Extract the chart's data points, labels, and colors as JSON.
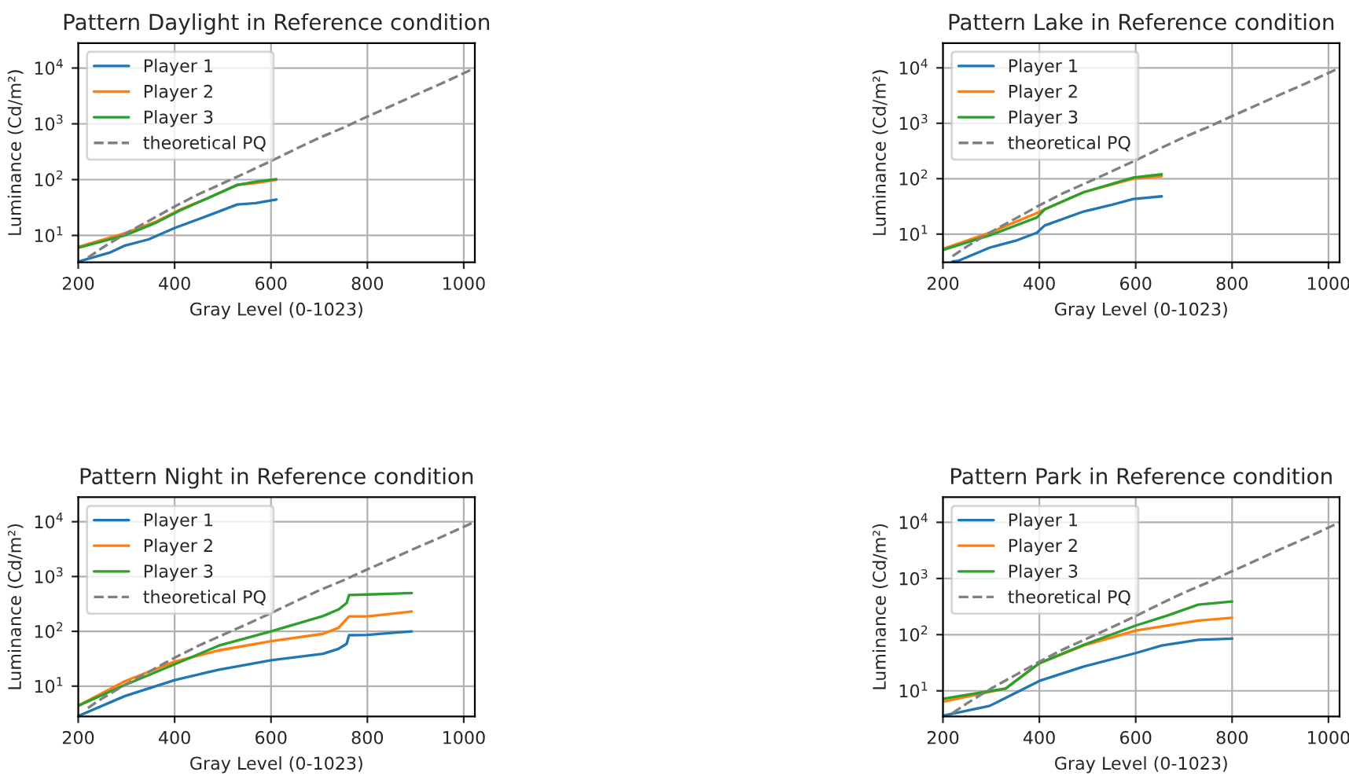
{
  "chart_data": [
    {
      "type": "line",
      "title": "Pattern Daylight in Reference condition",
      "xlabel": "Gray Level (0-1023)",
      "ylabel": "Luminance (Cd/m²)",
      "log": "y",
      "grid": true,
      "legend": "top left",
      "xlim": [
        200,
        1023
      ],
      "xticks": [
        200,
        400,
        600,
        800,
        1000
      ],
      "ylim": [
        3.3,
        28000
      ],
      "yticks": [
        {
          "value": 10,
          "label": "10$^{1}$"
        },
        {
          "value": 100,
          "label": "10$^{2}$"
        },
        {
          "value": 1000,
          "label": "10$^{3}$"
        },
        {
          "value": 10000,
          "label": "10$^{4}$"
        }
      ],
      "series": [
        {
          "name": "Player 1",
          "color": "#1f77b4",
          "x": [
            200,
            265,
            297,
            346,
            400,
            470,
            530,
            568,
            611
          ],
          "values": [
            3.4,
            4.9,
            6.6,
            8.5,
            13.6,
            22.8,
            35.8,
            38,
            44
          ]
        },
        {
          "name": "Player 2",
          "color": "#ff7f0e",
          "x": [
            200,
            297,
            362,
            411,
            470,
            530,
            568,
            611
          ],
          "values": [
            6.2,
            11,
            17.8,
            29,
            47,
            81,
            87,
            100
          ]
        },
        {
          "name": "Player 3",
          "color": "#2ca02c",
          "x": [
            200,
            297,
            362,
            411,
            470,
            530,
            568,
            611
          ],
          "values": [
            6.0,
            10,
            17,
            28,
            47,
            80,
            92,
            102
          ]
        },
        {
          "name": "theoretical PQ",
          "color": "#808080",
          "line_style": "dashed",
          "x": [
            220,
            250,
            300,
            350,
            400,
            450,
            500,
            550,
            600,
            650,
            700,
            750,
            800,
            850,
            900,
            950,
            1023
          ],
          "values": [
            4,
            6,
            11,
            19,
            33,
            55,
            86,
            135,
            215,
            350,
            560,
            850,
            1350,
            2100,
            3300,
            5100,
            10000
          ]
        }
      ]
    },
    {
      "type": "line",
      "title": "Pattern Lake in Reference condition",
      "xlabel": "Gray Level (0-1023)",
      "ylabel": "Luminance (Cd/m²)",
      "log": "y",
      "grid": true,
      "legend": "top left",
      "xlim": [
        200,
        1023
      ],
      "xticks": [
        200,
        400,
        600,
        800,
        1000
      ],
      "ylim": [
        3.1,
        28000
      ],
      "yticks": [
        {
          "value": 10,
          "label": "10$^{1}$"
        },
        {
          "value": 100,
          "label": "10$^{2}$"
        },
        {
          "value": 1000,
          "label": "10$^{3}$"
        },
        {
          "value": 10000,
          "label": "10$^{4}$"
        }
      ],
      "series": [
        {
          "name": "Player 1",
          "color": "#1f77b4",
          "x": [
            220,
            232,
            297,
            351,
            395,
            411,
            492,
            546,
            595,
            654
          ],
          "values": [
            3.2,
            3.3,
            5.7,
            7.6,
            10.6,
            14.3,
            25.6,
            33,
            43,
            48
          ]
        },
        {
          "name": "Player 2",
          "color": "#ff7f0e",
          "x": [
            200,
            297,
            395,
            411,
            492,
            595,
            654
          ],
          "values": [
            5.4,
            10.6,
            24,
            28,
            57,
            100,
            111
          ]
        },
        {
          "name": "Player 3",
          "color": "#2ca02c",
          "x": [
            200,
            297,
            395,
            411,
            492,
            595,
            654
          ],
          "values": [
            5.2,
            9.5,
            20,
            28,
            57,
            105,
            120
          ]
        },
        {
          "name": "theoretical PQ",
          "color": "#808080",
          "line_style": "dashed",
          "x": [
            220,
            250,
            300,
            350,
            400,
            450,
            500,
            550,
            600,
            650,
            700,
            750,
            800,
            850,
            900,
            950,
            1023
          ],
          "values": [
            4,
            6,
            11,
            19,
            33,
            55,
            86,
            135,
            215,
            350,
            560,
            850,
            1350,
            2100,
            3300,
            5100,
            10000
          ]
        }
      ]
    },
    {
      "type": "line",
      "title": "Pattern Night in Reference condition",
      "xlabel": "Gray Level (0-1023)",
      "ylabel": "Luminance (Cd/m²)",
      "log": "y",
      "grid": true,
      "legend": "top left",
      "xlim": [
        200,
        1023
      ],
      "xticks": [
        200,
        400,
        600,
        800,
        1000
      ],
      "ylim": [
        2.8,
        28000
      ],
      "yticks": [
        {
          "value": 10,
          "label": "10$^{1}$"
        },
        {
          "value": 100,
          "label": "10$^{2}$"
        },
        {
          "value": 1000,
          "label": "10$^{3}$"
        },
        {
          "value": 10000,
          "label": "10$^{4}$"
        }
      ],
      "series": [
        {
          "name": "Player 1",
          "color": "#1f77b4",
          "x": [
            200,
            297,
            400,
            492,
            600,
            708,
            740,
            757,
            762,
            800,
            892
          ],
          "values": [
            2.85,
            6.6,
            12.9,
            20,
            29.7,
            39,
            48,
            59,
            85,
            86,
            100
          ]
        },
        {
          "name": "Player 2",
          "color": "#ff7f0e",
          "x": [
            200,
            297,
            400,
            492,
            600,
            708,
            740,
            757,
            762,
            800,
            892
          ],
          "values": [
            4.4,
            12.3,
            28,
            45,
            66,
            90,
            116,
            168,
            187,
            187,
            230
          ]
        },
        {
          "name": "Player 3",
          "color": "#2ca02c",
          "x": [
            200,
            297,
            400,
            492,
            600,
            708,
            740,
            757,
            762,
            800,
            892
          ],
          "values": [
            4.4,
            10.5,
            25,
            55,
            100,
            190,
            250,
            330,
            460,
            470,
            500
          ]
        },
        {
          "name": "theoretical PQ",
          "color": "#808080",
          "line_style": "dashed",
          "x": [
            220,
            250,
            300,
            350,
            400,
            450,
            500,
            550,
            600,
            650,
            700,
            750,
            800,
            850,
            900,
            950,
            1023
          ],
          "values": [
            4,
            6,
            11,
            19,
            33,
            55,
            86,
            135,
            215,
            350,
            560,
            850,
            1350,
            2100,
            3300,
            5100,
            10000
          ]
        }
      ]
    },
    {
      "type": "line",
      "title": "Pattern Park in Reference condition",
      "xlabel": "Gray Level (0-1023)",
      "ylabel": "Luminance (Cd/m²)",
      "log": "y",
      "grid": true,
      "legend": "top left",
      "xlim": [
        200,
        1023
      ],
      "xticks": [
        200,
        400,
        600,
        800,
        1000
      ],
      "ylim": [
        3.5,
        28000
      ],
      "yticks": [
        {
          "value": 10,
          "label": "10$^{1}$"
        },
        {
          "value": 100,
          "label": "10$^{2}$"
        },
        {
          "value": 1000,
          "label": "10$^{3}$"
        },
        {
          "value": 10000,
          "label": "10$^{4}$"
        }
      ],
      "series": [
        {
          "name": "Player 1",
          "color": "#1f77b4",
          "x": [
            200,
            297,
            400,
            492,
            600,
            654,
            730,
            800
          ],
          "values": [
            3.6,
            5.4,
            15,
            27,
            47,
            64,
            81,
            85
          ]
        },
        {
          "name": "Player 2",
          "color": "#ff7f0e",
          "x": [
            200,
            330,
            400,
            492,
            600,
            730,
            800
          ],
          "values": [
            6.4,
            11,
            31,
            64,
            118,
            178,
            200
          ]
        },
        {
          "name": "Player 3",
          "color": "#2ca02c",
          "x": [
            200,
            330,
            400,
            492,
            600,
            665,
            730,
            800
          ],
          "values": [
            7.2,
            11,
            31,
            66,
            145,
            218,
            343,
            390
          ]
        },
        {
          "name": "theoretical PQ",
          "color": "#808080",
          "line_style": "dashed",
          "x": [
            220,
            250,
            300,
            350,
            400,
            450,
            500,
            550,
            600,
            650,
            700,
            750,
            800,
            850,
            900,
            950,
            1023
          ],
          "values": [
            4,
            6,
            11,
            19,
            33,
            55,
            86,
            135,
            215,
            350,
            560,
            850,
            1350,
            2100,
            3300,
            5100,
            10000
          ]
        }
      ]
    }
  ]
}
